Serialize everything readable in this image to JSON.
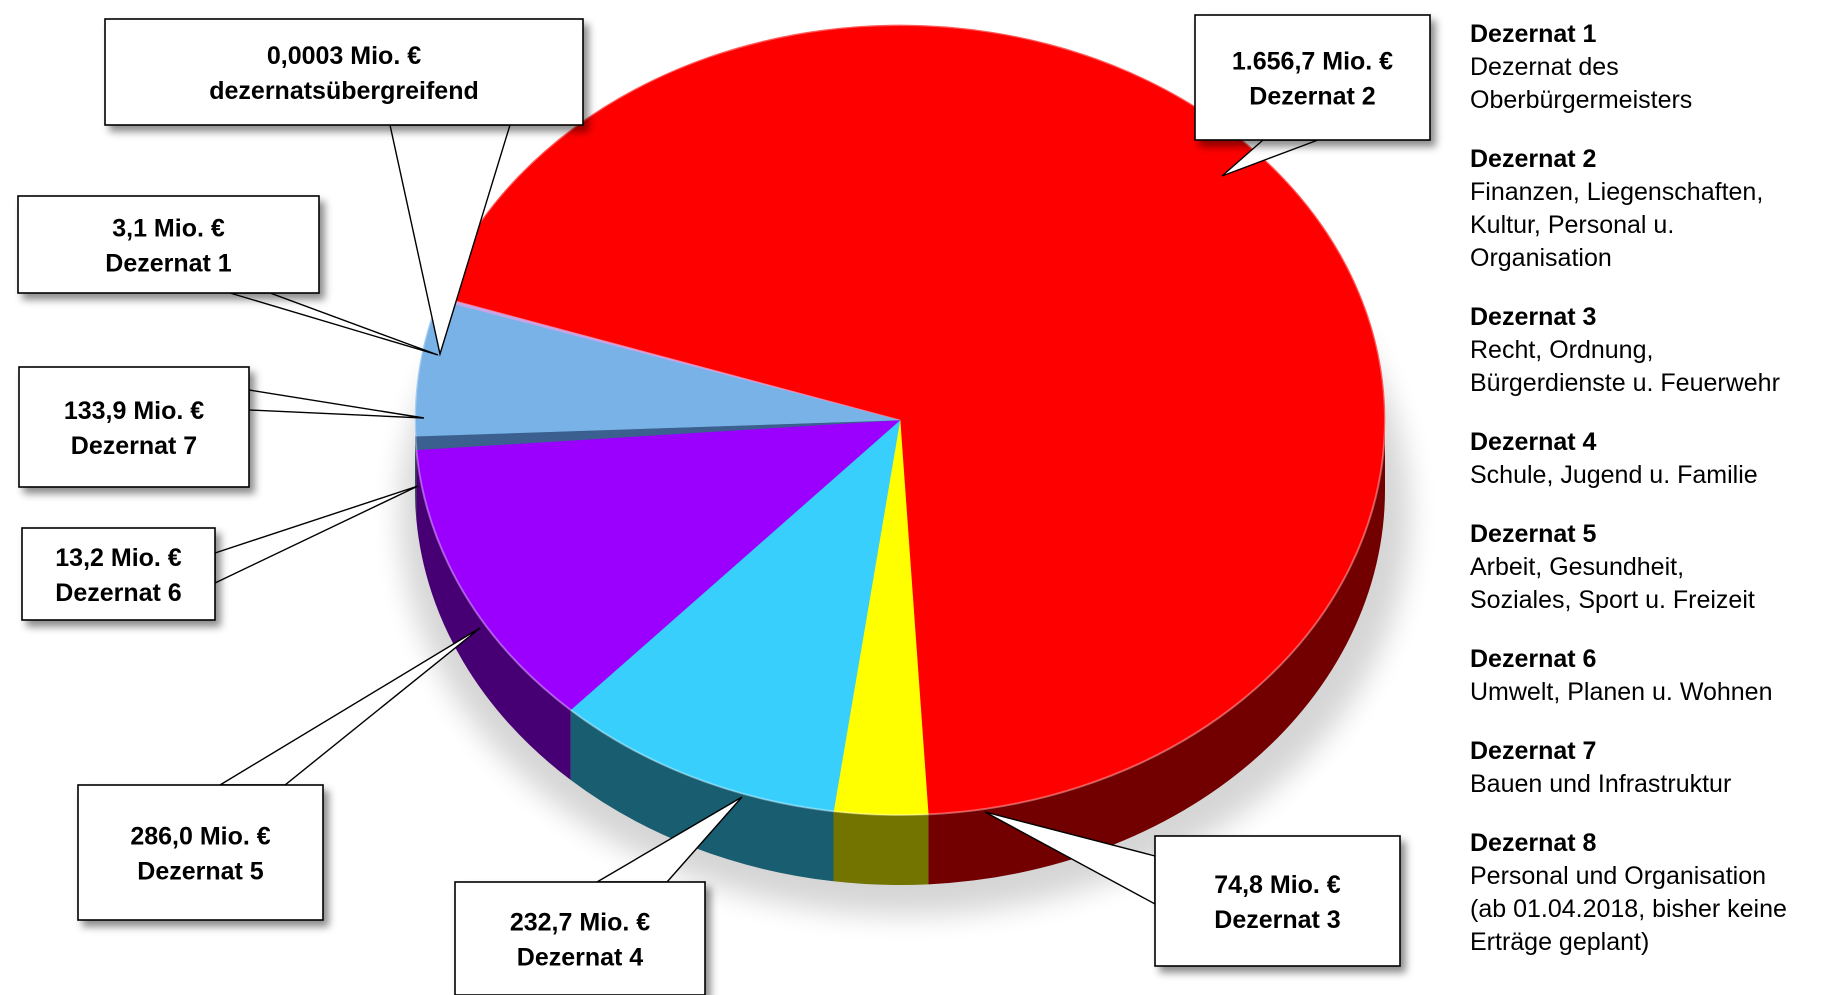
{
  "chart_data": {
    "type": "pie",
    "title": "",
    "unit": "Mio. €",
    "slices": [
      {
        "label_value": "1.656,7 Mio. €",
        "label_name": "Dezernat 2",
        "value": 1656.7,
        "color": "#ff0000"
      },
      {
        "label_value": "74,8 Mio. €",
        "label_name": "Dezernat 3",
        "value": 74.8,
        "color": "#ffff00"
      },
      {
        "label_value": "232,7 Mio. €",
        "label_name": "Dezernat 4",
        "value": 232.7,
        "color": "#38cffc"
      },
      {
        "label_value": "286,0 Mio. €",
        "label_name": "Dezernat 5",
        "value": 286.0,
        "color": "#9b00ff"
      },
      {
        "label_value": "13,2 Mio. €",
        "label_name": "Dezernat 6",
        "value": 13.2,
        "color": "#3b5f8f"
      },
      {
        "label_value": "133,9 Mio. €",
        "label_name": "Dezernat 7",
        "value": 133.9,
        "color": "#79b2e6"
      },
      {
        "label_value": "3,1 Mio. €",
        "label_name": "Dezernat 1",
        "value": 3.1,
        "color": "#c9a3e8"
      },
      {
        "label_value": "0,0003 Mio. €",
        "label_name": "dezernatsübergreifend",
        "value": 0.0003,
        "color": "#ff7070"
      }
    ],
    "legend_position": "right"
  },
  "legend": [
    {
      "title": "Dezernat 1",
      "desc": "Dezernat des\nOberbürgermeisters"
    },
    {
      "title": "Dezernat 2",
      "desc": "Finanzen, Liegenschaften,\nKultur, Personal u.\nOrganisation"
    },
    {
      "title": "Dezernat 3",
      "desc": "Recht, Ordnung,\nBürgerdienste u. Feuerwehr"
    },
    {
      "title": "Dezernat 4",
      "desc": "Schule, Jugend u. Familie"
    },
    {
      "title": "Dezernat 5",
      "desc": "Arbeit, Gesundheit,\nSoziales, Sport u. Freizeit"
    },
    {
      "title": "Dezernat 6",
      "desc": "Umwelt, Planen u. Wohnen"
    },
    {
      "title": "Dezernat 7",
      "desc": "Bauen und Infrastruktur"
    },
    {
      "title": "Dezernat 8",
      "desc": "Personal und Organisation\n(ab 01.04.2018, bisher keine\nErträge geplant)"
    }
  ]
}
